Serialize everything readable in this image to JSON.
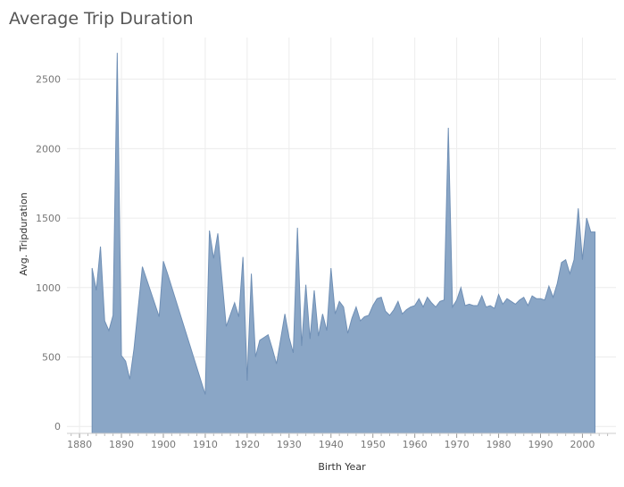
{
  "chart_data": {
    "type": "area",
    "title": "Average Trip Duration",
    "xlabel": "Birth Year",
    "ylabel": "Avg. Tripduration",
    "xlim": [
      1877,
      2008
    ],
    "ylim": [
      -50,
      2800
    ],
    "x_ticks": [
      1880,
      1890,
      1900,
      1910,
      1920,
      1930,
      1940,
      1950,
      1960,
      1970,
      1980,
      1990,
      2000
    ],
    "y_ticks": [
      0,
      500,
      1000,
      1500,
      2000,
      2500
    ],
    "grid": true,
    "color": "#8aa6c6",
    "line_color": "#6f8fb5",
    "series": [
      {
        "x": [
          1883,
          1884,
          1885,
          1886,
          1887,
          1888,
          1889,
          1890,
          1891,
          1892,
          1893,
          1895,
          1899,
          1900,
          1901,
          1910,
          1911,
          1912,
          1913,
          1915,
          1917,
          1918,
          1919,
          1920,
          1921,
          1922,
          1923,
          1924,
          1925,
          1926,
          1927,
          1928,
          1929,
          1930,
          1931,
          1932,
          1933,
          1934,
          1935,
          1936,
          1937,
          1938,
          1939,
          1940,
          1941,
          1942,
          1943,
          1944,
          1945,
          1946,
          1947,
          1948,
          1949,
          1950,
          1951,
          1952,
          1953,
          1954,
          1955,
          1956,
          1957,
          1958,
          1959,
          1960,
          1961,
          1962,
          1963,
          1964,
          1965,
          1966,
          1967,
          1968,
          1969,
          1970,
          1971,
          1972,
          1973,
          1974,
          1975,
          1976,
          1977,
          1978,
          1979,
          1980,
          1981,
          1982,
          1983,
          1984,
          1985,
          1986,
          1987,
          1988,
          1989,
          1990,
          1991,
          1992,
          1993,
          1994,
          1995,
          1996,
          1997,
          1998,
          1999,
          2000,
          2001,
          2002,
          2003
        ],
        "y": [
          1140,
          980,
          1295,
          760,
          690,
          800,
          2690,
          510,
          470,
          340,
          560,
          1150,
          790,
          1190,
          1100,
          230,
          1410,
          1210,
          1390,
          720,
          890,
          790,
          1220,
          330,
          1100,
          500,
          620,
          640,
          660,
          560,
          450,
          630,
          810,
          640,
          530,
          1430,
          580,
          1020,
          630,
          980,
          650,
          810,
          690,
          1140,
          810,
          900,
          860,
          670,
          780,
          860,
          760,
          790,
          800,
          870,
          920,
          930,
          830,
          800,
          840,
          900,
          810,
          840,
          860,
          870,
          920,
          860,
          930,
          890,
          860,
          900,
          910,
          2150,
          860,
          910,
          1000,
          870,
          880,
          870,
          870,
          940,
          860,
          870,
          850,
          950,
          880,
          920,
          900,
          880,
          910,
          930,
          870,
          940,
          920,
          920,
          910,
          1010,
          930,
          1030,
          1180,
          1200,
          1100,
          1200,
          1570,
          1200,
          1500,
          1400,
          1400
        ]
      }
    ]
  }
}
